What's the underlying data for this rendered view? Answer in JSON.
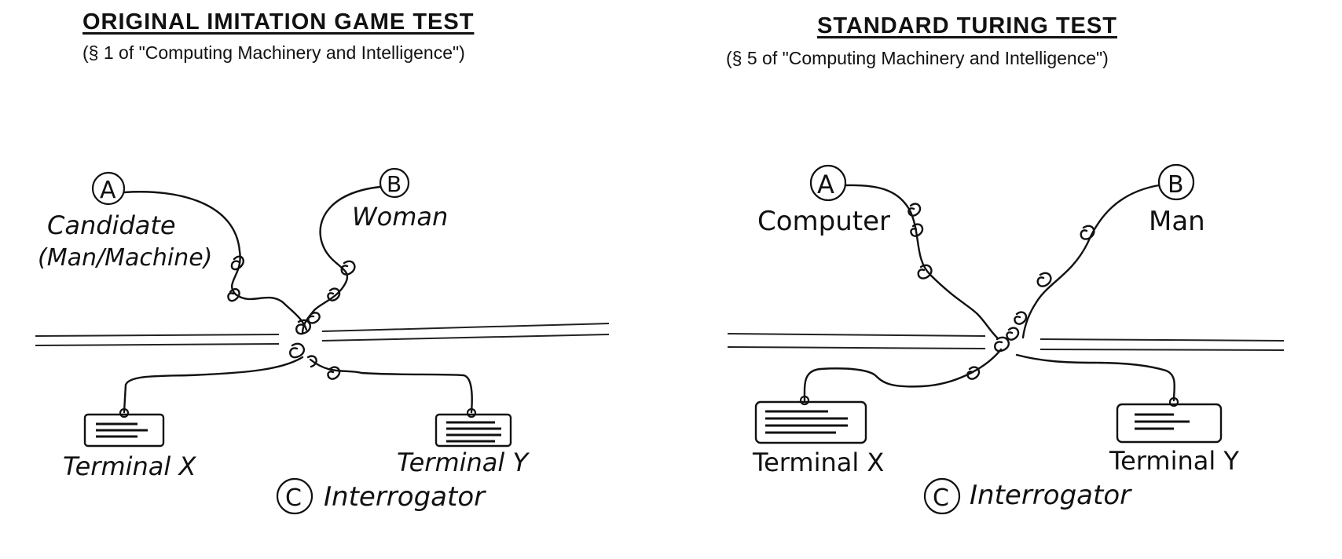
{
  "left_panel": {
    "title": "ORIGINAL IMITATION GAME TEST",
    "subtitle": "(§ 1 of \"Computing Machinery and Intelligence\")",
    "node_a": {
      "letter": "A",
      "label_line1": "Candidate",
      "label_line2": "(Man/Machine)"
    },
    "node_b": {
      "letter": "B",
      "label": "Woman"
    },
    "terminal_x": "Terminal X",
    "terminal_y": "Terminal Y",
    "node_c": {
      "letter": "C",
      "label": "Interrogator"
    }
  },
  "right_panel": {
    "title": "STANDARD TURING TEST",
    "subtitle": "(§ 5 of \"Computing Machinery and Intelligence\")",
    "node_a": {
      "letter": "A",
      "label": "Computer"
    },
    "node_b": {
      "letter": "B",
      "label": "Man"
    },
    "terminal_x": "Terminal X",
    "terminal_y": "Terminal Y",
    "node_c": {
      "letter": "C",
      "label": "Interrogator"
    }
  }
}
